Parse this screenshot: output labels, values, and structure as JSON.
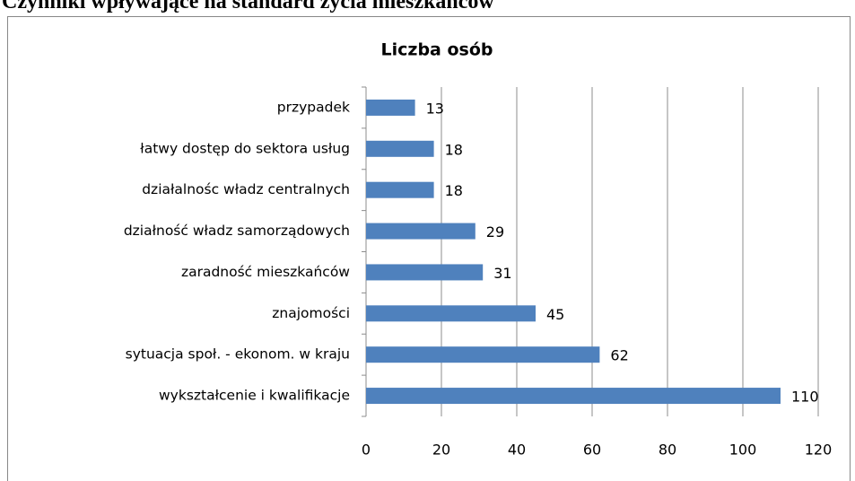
{
  "heading": "Czynniki wpływające na standard życia mieszkańców",
  "chart_data": {
    "type": "barh",
    "title": "Liczba osób",
    "categories": [
      "przypadek",
      "łatwy dostęp do sektora usług",
      "działalnośc władz centralnych",
      "działność władz samorządowych",
      "zaradność mieszkańców",
      "znajomości",
      "sytuacja społ. - ekonom. w kraju",
      "wykształcenie i kwalifikacje"
    ],
    "values": [
      13,
      18,
      18,
      29,
      31,
      45,
      62,
      110
    ],
    "color": "#4f81bd",
    "xlim": [
      0,
      120
    ],
    "xticks": [
      0,
      20,
      40,
      60,
      80,
      100,
      120
    ],
    "grid": true
  }
}
